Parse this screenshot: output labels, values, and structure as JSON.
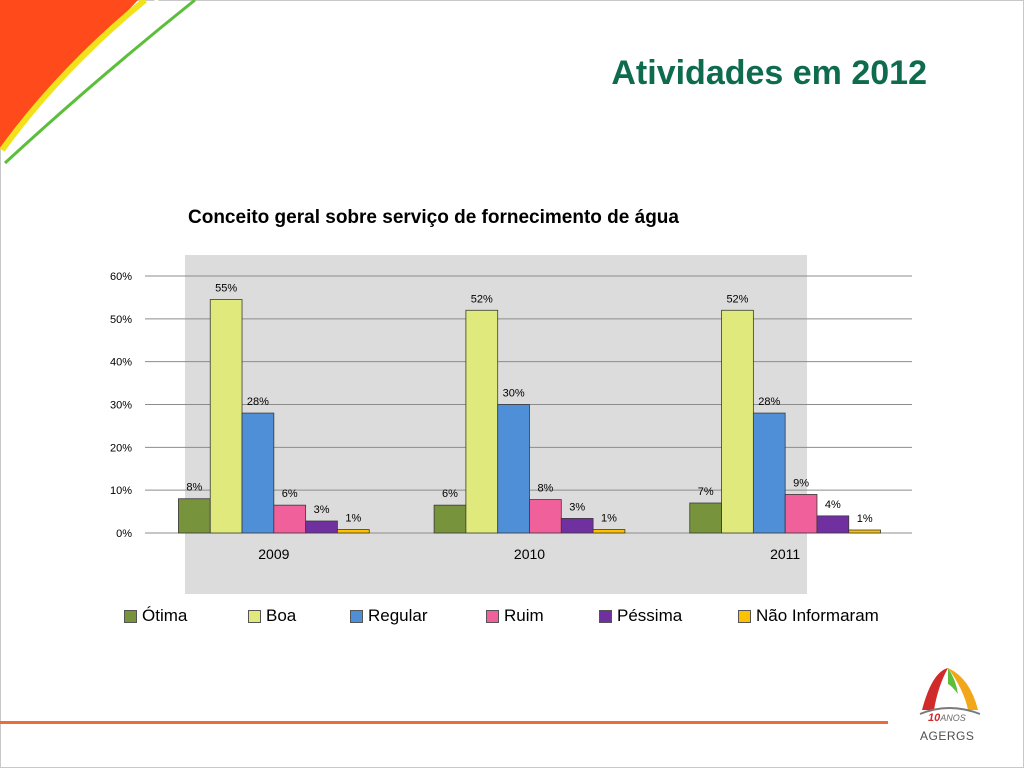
{
  "slide": {
    "title": "Atividades em 2012",
    "logo_years": "10",
    "logo_years_suffix": "ANOS",
    "logo_name": "AGERGS"
  },
  "colors": {
    "title": "#0e6b4e",
    "plot_background": "#dcdcdc",
    "footer_line": "#ef6a3a"
  },
  "chart_data": {
    "type": "bar",
    "title": "Conceito geral sobre serviço de fornecimento de água",
    "xlabel": "",
    "ylabel": "",
    "categories": [
      "2009",
      "2010",
      "2011"
    ],
    "ylim": [
      0,
      60
    ],
    "y_ticks": [
      "0%",
      "10%",
      "20%",
      "30%",
      "40%",
      "50%",
      "60%"
    ],
    "grid": true,
    "legend_position": "bottom",
    "series": [
      {
        "name": "Ótima",
        "color": "#77933c",
        "values": [
          8,
          6.5,
          7
        ],
        "labels": [
          "8%",
          "6%",
          "7%"
        ]
      },
      {
        "name": "Boa",
        "color": "#e0ea7c",
        "values": [
          54.5,
          52,
          52
        ],
        "labels": [
          "55%",
          "52%",
          "52%"
        ]
      },
      {
        "name": "Regular",
        "color": "#4f8fd8",
        "values": [
          28,
          30,
          28
        ],
        "labels": [
          "28%",
          "30%",
          "28%"
        ]
      },
      {
        "name": "Ruim",
        "color": "#f0609a",
        "values": [
          6.5,
          7.8,
          9
        ],
        "labels": [
          "6%",
          "8%",
          "9%"
        ]
      },
      {
        "name": "Péssima",
        "color": "#7030a0",
        "values": [
          2.8,
          3.4,
          4
        ],
        "labels": [
          "3%",
          "3%",
          "4%"
        ]
      },
      {
        "name": "Não Informaram",
        "color": "#ffc000",
        "values": [
          0.8,
          0.8,
          0.7
        ],
        "labels": [
          "1%",
          "1%",
          "1%"
        ]
      }
    ]
  }
}
